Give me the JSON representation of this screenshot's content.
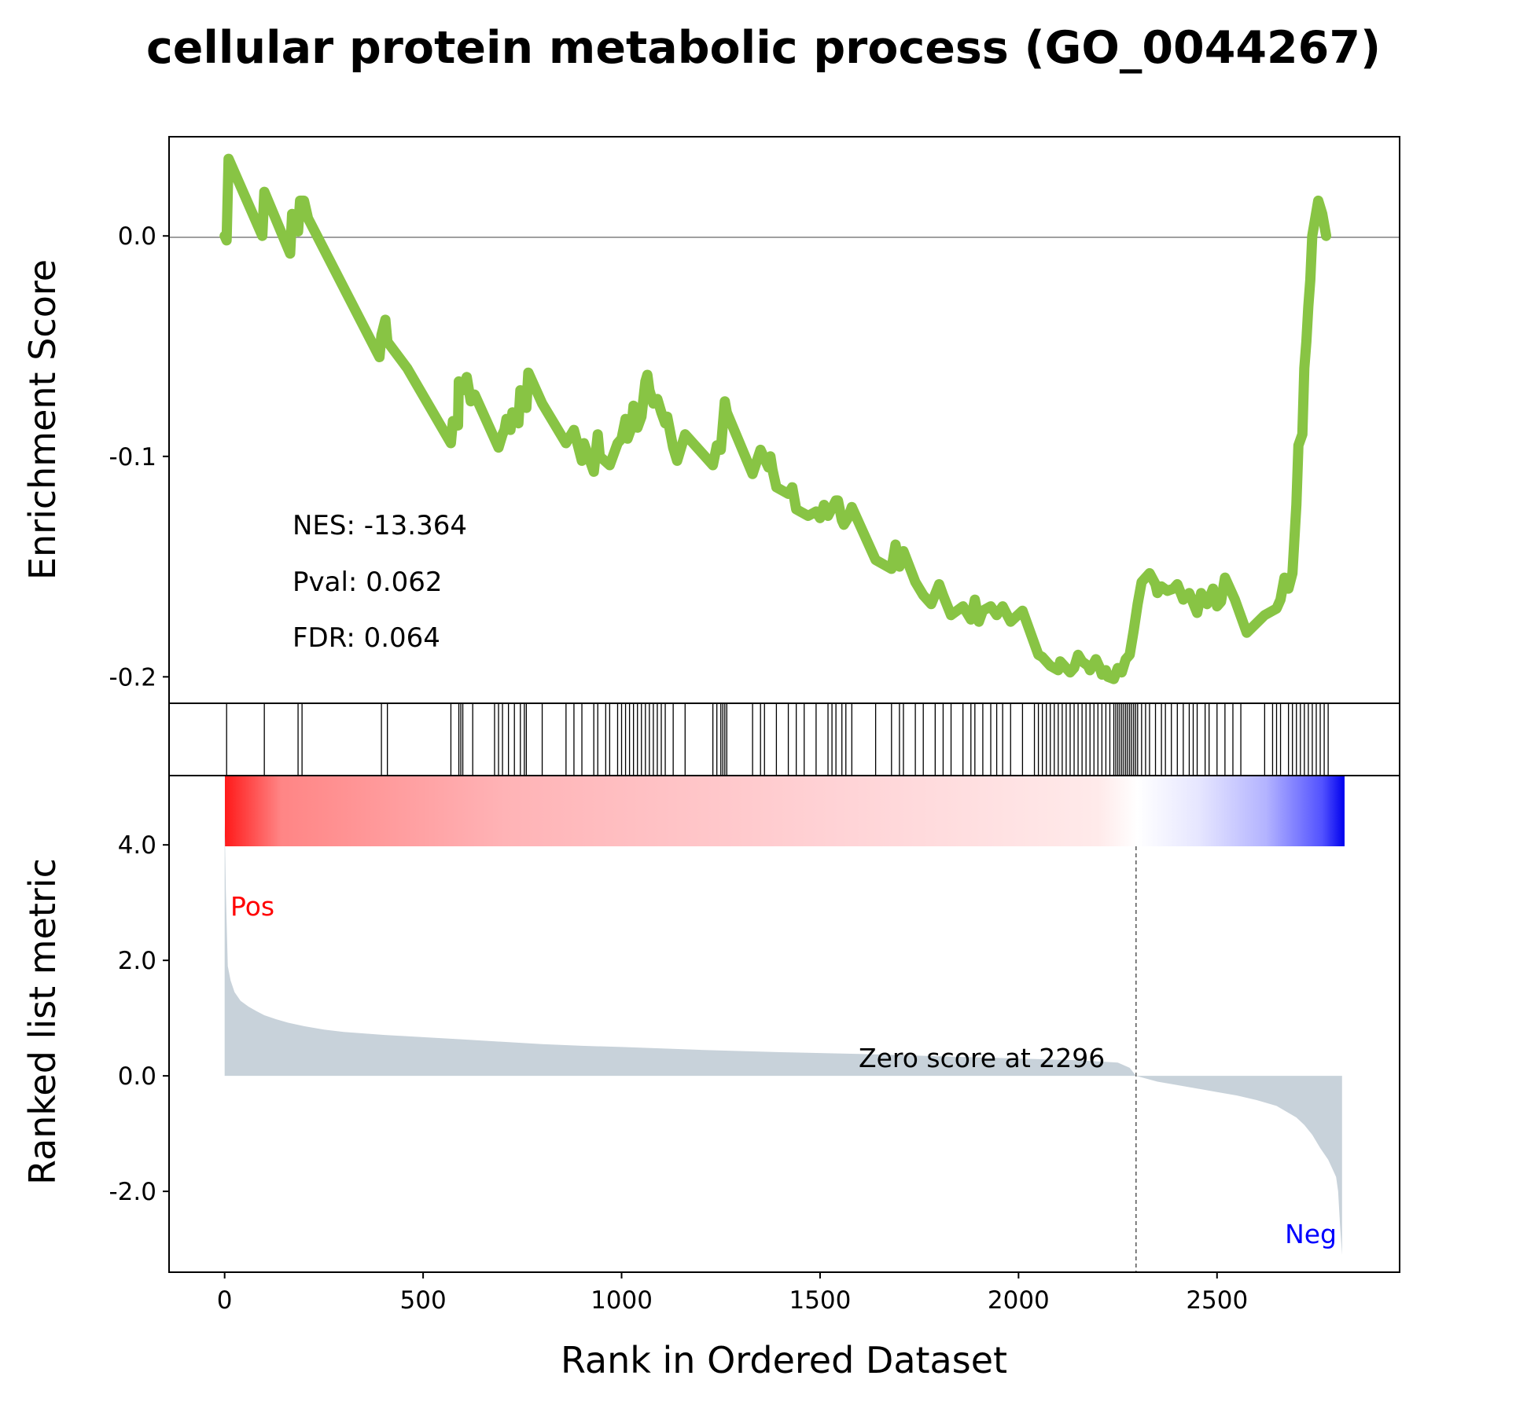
{
  "chart_data": {
    "type": "line",
    "title": "cellular protein metabolic process (GO_0044267)",
    "es_panel": {
      "ylabel": "Enrichment Score",
      "ylim": [
        -0.212,
        0.045
      ],
      "yticks": [
        0.0,
        -0.1,
        -0.2
      ],
      "ytick_labels": [
        "0.0",
        "-0.1",
        "-0.2"
      ],
      "line_color": "#88c444",
      "stats": {
        "nes": "NES: -13.364",
        "pval": "Pval: 0.062",
        "fdr": "FDR: 0.064"
      },
      "x": [
        0,
        5,
        10,
        95,
        100,
        165,
        170,
        185,
        190,
        200,
        210,
        390,
        395,
        405,
        410,
        460,
        570,
        575,
        580,
        588,
        590,
        600,
        610,
        620,
        630,
        690,
        700,
        705,
        710,
        720,
        725,
        740,
        745,
        760,
        765,
        800,
        860,
        880,
        900,
        905,
        930,
        940,
        945,
        970,
        990,
        1000,
        1010,
        1015,
        1025,
        1030,
        1040,
        1050,
        1060,
        1065,
        1070,
        1080,
        1090,
        1100,
        1110,
        1115,
        1130,
        1140,
        1160,
        1230,
        1240,
        1250,
        1260,
        1265,
        1330,
        1350,
        1370,
        1375,
        1380,
        1390,
        1420,
        1430,
        1440,
        1460,
        1470,
        1490,
        1500,
        1510,
        1520,
        1540,
        1545,
        1555,
        1560,
        1570,
        1580,
        1640,
        1680,
        1690,
        1700,
        1710,
        1740,
        1760,
        1780,
        1800,
        1810,
        1830,
        1860,
        1880,
        1890,
        1900,
        1910,
        1930,
        1945,
        1960,
        1980,
        2010,
        2050,
        2060,
        2080,
        2100,
        2105,
        2120,
        2130,
        2140,
        2150,
        2160,
        2175,
        2180,
        2195,
        2205,
        2210,
        2220,
        2225,
        2240,
        2250,
        2260,
        2270,
        2280,
        2290,
        2300,
        2310,
        2330,
        2345,
        2350,
        2360,
        2375,
        2390,
        2400,
        2415,
        2430,
        2450,
        2460,
        2475,
        2490,
        2500,
        2510,
        2520,
        2545,
        2575,
        2620,
        2640,
        2650,
        2660,
        2670,
        2680,
        2690,
        2700,
        2705,
        2715,
        2720,
        2725,
        2730,
        2735,
        2740,
        2755,
        2765,
        2775,
        2780,
        2790,
        2800,
        2805,
        2815,
        2830,
        2850,
        2865,
        2890,
        2900,
        2905,
        2912,
        2920,
        2935,
        2960
      ],
      "es": [
        0.0,
        -0.002,
        0.035,
        0.0,
        0.02,
        -0.008,
        0.01,
        0.002,
        0.016,
        0.016,
        0.008,
        -0.055,
        -0.045,
        -0.038,
        -0.048,
        -0.06,
        -0.094,
        -0.084,
        -0.084,
        -0.086,
        -0.066,
        -0.07,
        -0.064,
        -0.075,
        -0.072,
        -0.096,
        -0.09,
        -0.088,
        -0.083,
        -0.088,
        -0.08,
        -0.085,
        -0.07,
        -0.078,
        -0.062,
        -0.076,
        -0.094,
        -0.088,
        -0.102,
        -0.094,
        -0.107,
        -0.09,
        -0.1,
        -0.104,
        -0.094,
        -0.092,
        -0.083,
        -0.092,
        -0.087,
        -0.077,
        -0.087,
        -0.082,
        -0.066,
        -0.063,
        -0.07,
        -0.076,
        -0.074,
        -0.08,
        -0.085,
        -0.082,
        -0.096,
        -0.102,
        -0.09,
        -0.104,
        -0.095,
        -0.097,
        -0.075,
        -0.08,
        -0.108,
        -0.097,
        -0.105,
        -0.1,
        -0.106,
        -0.114,
        -0.117,
        -0.114,
        -0.124,
        -0.126,
        -0.127,
        -0.125,
        -0.128,
        -0.122,
        -0.127,
        -0.12,
        -0.12,
        -0.129,
        -0.131,
        -0.128,
        -0.123,
        -0.147,
        -0.151,
        -0.14,
        -0.15,
        -0.143,
        -0.157,
        -0.163,
        -0.167,
        -0.158,
        -0.163,
        -0.172,
        -0.168,
        -0.174,
        -0.165,
        -0.175,
        -0.17,
        -0.168,
        -0.172,
        -0.168,
        -0.175,
        -0.17,
        -0.19,
        -0.191,
        -0.195,
        -0.197,
        -0.193,
        -0.196,
        -0.198,
        -0.196,
        -0.19,
        -0.193,
        -0.195,
        -0.197,
        -0.192,
        -0.196,
        -0.199,
        -0.197,
        -0.2,
        -0.201,
        -0.196,
        -0.198,
        -0.192,
        -0.19,
        -0.179,
        -0.167,
        -0.157,
        -0.153,
        -0.158,
        -0.162,
        -0.159,
        -0.161,
        -0.16,
        -0.158,
        -0.165,
        -0.162,
        -0.171,
        -0.162,
        -0.167,
        -0.16,
        -0.168,
        -0.166,
        -0.155,
        -0.165,
        -0.18,
        -0.172,
        -0.17,
        -0.169,
        -0.165,
        -0.155,
        -0.16,
        -0.153,
        -0.122,
        -0.095,
        -0.09,
        -0.06,
        -0.048,
        -0.032,
        -0.02,
        0.0,
        0.016,
        0.01,
        0.0
      ],
      "hits": [
        5,
        100,
        185,
        195,
        395,
        410,
        570,
        590,
        595,
        600,
        625,
        680,
        690,
        700,
        715,
        730,
        745,
        755,
        760,
        800,
        860,
        880,
        900,
        930,
        940,
        960,
        970,
        990,
        1000,
        1010,
        1020,
        1030,
        1040,
        1050,
        1060,
        1070,
        1080,
        1090,
        1100,
        1110,
        1130,
        1160,
        1230,
        1240,
        1250,
        1255,
        1260,
        1265,
        1330,
        1350,
        1360,
        1390,
        1420,
        1440,
        1460,
        1490,
        1520,
        1530,
        1540,
        1555,
        1565,
        1580,
        1640,
        1680,
        1700,
        1710,
        1740,
        1760,
        1790,
        1810,
        1830,
        1860,
        1880,
        1890,
        1910,
        1930,
        1945,
        1960,
        1980,
        2010,
        2040,
        2050,
        2060,
        2070,
        2080,
        2090,
        2100,
        2110,
        2120,
        2130,
        2140,
        2150,
        2160,
        2170,
        2180,
        2190,
        2200,
        2210,
        2220,
        2230,
        2240,
        2245,
        2250,
        2255,
        2260,
        2265,
        2270,
        2275,
        2280,
        2285,
        2290,
        2295,
        2300,
        2310,
        2320,
        2330,
        2345,
        2360,
        2370,
        2385,
        2400,
        2415,
        2430,
        2440,
        2450,
        2470,
        2480,
        2500,
        2520,
        2540,
        2560,
        2620,
        2640,
        2650,
        2660,
        2680,
        2690,
        2700,
        2710,
        2720,
        2730,
        2740,
        2750,
        2760,
        2770,
        2780
      ]
    },
    "metric_panel": {
      "ylabel": "Ranked list metric",
      "xlabel": "Rank in Ordered Dataset",
      "ylim": [
        -3.4,
        5.2
      ],
      "yticks": [
        4.0,
        2.0,
        0.0,
        -2.0
      ],
      "ytick_labels": [
        "4.0",
        "2.0",
        "0.0",
        "-2.0"
      ],
      "xlim": [
        -140,
        2960
      ],
      "xticks": [
        0,
        500,
        1000,
        1500,
        2000,
        2500
      ],
      "xtick_labels": [
        "0",
        "500",
        "1000",
        "1500",
        "2000",
        "2500"
      ],
      "n_genes": 2815,
      "zero_cross": 2296,
      "zero_label": "Zero score at 2296",
      "pos_label": "Pos",
      "neg_label": "Neg",
      "pos_color": "#ff0000",
      "neg_color": "#0000ff",
      "fill_color": "#c8d2da",
      "metric_x": [
        0,
        3,
        8,
        15,
        25,
        40,
        60,
        80,
        100,
        130,
        160,
        200,
        250,
        300,
        400,
        500,
        600,
        700,
        800,
        900,
        1000,
        1200,
        1400,
        1600,
        1800,
        2000,
        2150,
        2250,
        2280,
        2296,
        2350,
        2400,
        2500,
        2550,
        2600,
        2650,
        2700,
        2720,
        2740,
        2760,
        2780,
        2790,
        2800,
        2805,
        2810,
        2815
      ],
      "metric_y": [
        4.4,
        3.2,
        1.9,
        1.65,
        1.45,
        1.3,
        1.2,
        1.12,
        1.05,
        0.98,
        0.92,
        0.86,
        0.8,
        0.76,
        0.71,
        0.67,
        0.63,
        0.59,
        0.55,
        0.52,
        0.5,
        0.45,
        0.41,
        0.38,
        0.34,
        0.3,
        0.27,
        0.23,
        0.14,
        0.0,
        -0.1,
        -0.16,
        -0.28,
        -0.34,
        -0.42,
        -0.52,
        -0.72,
        -0.85,
        -1.02,
        -1.25,
        -1.45,
        -1.6,
        -1.75,
        -2.0,
        -2.6,
        -3.1
      ]
    }
  }
}
